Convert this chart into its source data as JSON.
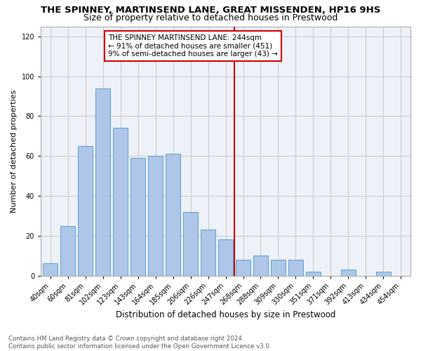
{
  "title": "THE SPINNEY, MARTINSEND LANE, GREAT MISSENDEN, HP16 9HS",
  "subtitle": "Size of property relative to detached houses in Prestwood",
  "xlabel": "Distribution of detached houses by size in Prestwood",
  "ylabel": "Number of detached properties",
  "bar_labels": [
    "40sqm",
    "60sqm",
    "81sqm",
    "102sqm",
    "123sqm",
    "143sqm",
    "164sqm",
    "185sqm",
    "206sqm",
    "226sqm",
    "247sqm",
    "268sqm",
    "288sqm",
    "309sqm",
    "330sqm",
    "351sqm",
    "371sqm",
    "392sqm",
    "413sqm",
    "434sqm",
    "454sqm"
  ],
  "bar_values": [
    6,
    25,
    65,
    94,
    74,
    59,
    60,
    61,
    32,
    23,
    18,
    8,
    10,
    8,
    8,
    2,
    0,
    3,
    0,
    2,
    0
  ],
  "bar_color": "#aec6e8",
  "bar_edgecolor": "#5a9fd4",
  "vline_color": "#cc0000",
  "annotation_title": "THE SPINNEY MARTINSEND LANE: 244sqm",
  "annotation_line1": "← 91% of detached houses are smaller (451)",
  "annotation_line2": "9% of semi-detached houses are larger (43) →",
  "annotation_box_color": "#cc0000",
  "ylim": [
    0,
    125
  ],
  "yticks": [
    0,
    20,
    40,
    60,
    80,
    100,
    120
  ],
  "grid_color": "#cccccc",
  "background_color": "#eef2f8",
  "footnote": "Contains HM Land Registry data © Crown copyright and database right 2024.\nContains public sector information licensed under the Open Government Licence v3.0.",
  "title_fontsize": 9.5,
  "subtitle_fontsize": 9,
  "xlabel_fontsize": 8.5,
  "ylabel_fontsize": 8,
  "tick_fontsize": 7,
  "annotation_fontsize": 7.5
}
